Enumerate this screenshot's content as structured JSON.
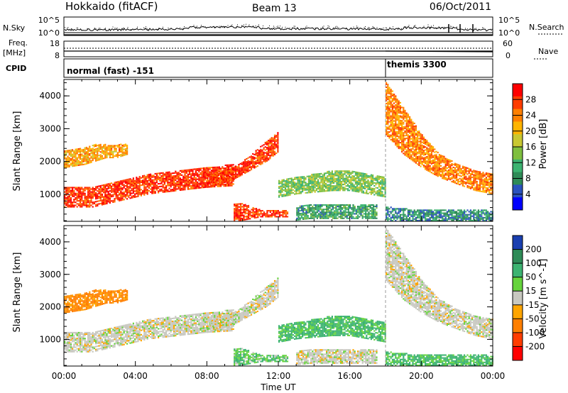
{
  "header": {
    "title": "Hokkaido (fitACF)",
    "beam": "Beam 13",
    "date": "06/Oct/2011"
  },
  "status_panel": {
    "nsky_label": "N.Sky",
    "nsearch_label": "N.Search",
    "freq_label_1": "Freq.",
    "freq_label_2": "[MHz]",
    "nave_label": "Nave",
    "cpid_label": "CPID",
    "noise_ticks": [
      "10^5",
      "10^0"
    ],
    "freq_ticks": [
      "18",
      "8"
    ],
    "nave_ticks": [
      "60",
      "0"
    ],
    "cpid_segments": [
      {
        "label": "normal (fast) -151",
        "start": "00:00"
      },
      {
        "label": "themis 3300",
        "start": "18:00"
      }
    ]
  },
  "chart_data": [
    {
      "type": "heatmap",
      "name": "power",
      "ylabel": "Slant Range [km]",
      "xlabel": "",
      "x_range_hours": [
        0,
        24
      ],
      "ylim_km": [
        180,
        4500
      ],
      "yticks": [
        1000,
        2000,
        3000,
        4000
      ],
      "colorbar": {
        "label": "Power [dB]",
        "range": [
          0,
          32
        ],
        "ticks": [
          4,
          8,
          12,
          16,
          20,
          24,
          28
        ],
        "colors": [
          "#0000ff",
          "#2a52be",
          "#2e8b57",
          "#3cb371",
          "#7fbf3f",
          "#c8c832",
          "#ffb400",
          "#ff7f00",
          "#ff3c00",
          "#ff0000"
        ]
      },
      "regions": [
        {
          "t": [
            0.0,
            9.5
          ],
          "r_lo": [
            600,
            600,
            800,
            1000,
            1100,
            1200,
            1250
          ],
          "r_hi": [
            1200,
            1200,
            1400,
            1600,
            1700,
            1800,
            1900
          ],
          "level": 28
        },
        {
          "t": [
            0.0,
            3.5
          ],
          "r_lo": [
            1800,
            1850,
            1900,
            2000,
            2100,
            2100,
            2200
          ],
          "r_hi": [
            2300,
            2350,
            2400,
            2500,
            2500,
            2500,
            2500
          ],
          "level": 22
        },
        {
          "t": [
            8.0,
            12.0
          ],
          "r_lo": [
            1200,
            1300,
            1400,
            1600,
            1800,
            2000,
            2300
          ],
          "r_hi": [
            1600,
            1700,
            1800,
            2000,
            2300,
            2600,
            2900
          ],
          "level": 28
        },
        {
          "t": [
            9.5,
            12.5
          ],
          "r_lo": [
            180,
            200,
            250,
            300,
            300,
            300,
            300
          ],
          "r_hi": [
            700,
            700,
            600,
            500,
            500,
            500,
            500
          ],
          "level": 28
        },
        {
          "t": [
            12.0,
            18.0
          ],
          "r_lo": [
            900,
            1000,
            1050,
            1100,
            1100,
            1000,
            900
          ],
          "r_hi": [
            1400,
            1500,
            1600,
            1700,
            1700,
            1600,
            1500
          ],
          "level": 14
        },
        {
          "t": [
            13.0,
            17.5
          ],
          "r_lo": [
            200,
            250,
            250,
            250,
            250,
            250,
            250
          ],
          "r_hi": [
            600,
            700,
            700,
            700,
            700,
            700,
            700
          ],
          "level": 10
        },
        {
          "t": [
            18.0,
            24.0
          ],
          "r_lo": [
            2800,
            2200,
            1800,
            1500,
            1300,
            1100,
            1000
          ],
          "r_hi": [
            4400,
            3600,
            2800,
            2200,
            1900,
            1700,
            1600
          ],
          "level": 24
        },
        {
          "t": [
            18.0,
            24.0
          ],
          "r_lo": [
            180,
            180,
            180,
            180,
            180,
            180,
            180
          ],
          "r_hi": [
            600,
            550,
            500,
            500,
            500,
            500,
            500
          ],
          "level": 8
        }
      ]
    },
    {
      "type": "heatmap",
      "name": "velocity",
      "ylabel": "Slant Range [km]",
      "xlabel": "Time UT",
      "x_range_hours": [
        0,
        24
      ],
      "xticks": [
        "00:00",
        "04:00",
        "08:00",
        "12:00",
        "16:00",
        "20:00",
        "00:00"
      ],
      "ylim_km": [
        180,
        4500
      ],
      "yticks": [
        1000,
        2000,
        3000,
        4000
      ],
      "colorbar": {
        "label": "Velocity [m s^-1]",
        "ticks": [
          200,
          100,
          50,
          15,
          -15,
          -50,
          -100,
          -200
        ],
        "colors": [
          "#1a3fb0",
          "#2e8b57",
          "#3cb371",
          "#66d43c",
          "#c8c8c0",
          "#ffa500",
          "#ff7f00",
          "#ff3c00",
          "#ff0000"
        ]
      },
      "regions": [
        {
          "t": [
            0.0,
            9.5
          ],
          "r_lo": [
            600,
            600,
            800,
            1000,
            1100,
            1200,
            1250
          ],
          "r_hi": [
            1200,
            1200,
            1400,
            1600,
            1700,
            1800,
            1900
          ],
          "value": 0
        },
        {
          "t": [
            0.0,
            3.5
          ],
          "r_lo": [
            1800,
            1850,
            1900,
            2000,
            2100,
            2100,
            2200
          ],
          "r_hi": [
            2300,
            2350,
            2400,
            2500,
            2500,
            2500,
            2500
          ],
          "value": -40
        },
        {
          "t": [
            8.0,
            12.0
          ],
          "r_lo": [
            1200,
            1300,
            1400,
            1600,
            1800,
            2000,
            2300
          ],
          "r_hi": [
            1600,
            1700,
            1800,
            2000,
            2300,
            2600,
            2900
          ],
          "value": 0
        },
        {
          "t": [
            9.5,
            12.5
          ],
          "r_lo": [
            180,
            200,
            250,
            300,
            300,
            300,
            300
          ],
          "r_hi": [
            700,
            700,
            600,
            500,
            500,
            500,
            500
          ],
          "value": 30
        },
        {
          "t": [
            12.0,
            18.0
          ],
          "r_lo": [
            900,
            1000,
            1050,
            1100,
            1100,
            1000,
            900
          ],
          "r_hi": [
            1400,
            1500,
            1600,
            1700,
            1700,
            1600,
            1500
          ],
          "value": 40
        },
        {
          "t": [
            13.0,
            17.5
          ],
          "r_lo": [
            200,
            250,
            250,
            250,
            250,
            250,
            250
          ],
          "r_hi": [
            600,
            700,
            700,
            700,
            700,
            700,
            700
          ],
          "value": 0
        },
        {
          "t": [
            18.0,
            24.0
          ],
          "r_lo": [
            2800,
            2200,
            1800,
            1500,
            1300,
            1100,
            1000
          ],
          "r_hi": [
            4400,
            3600,
            2800,
            2200,
            1900,
            1700,
            1600
          ],
          "value": 0
        },
        {
          "t": [
            18.0,
            24.0
          ],
          "r_lo": [
            180,
            180,
            180,
            180,
            180,
            180,
            180
          ],
          "r_hi": [
            600,
            550,
            500,
            500,
            500,
            500,
            500
          ],
          "value": 40
        }
      ]
    }
  ]
}
